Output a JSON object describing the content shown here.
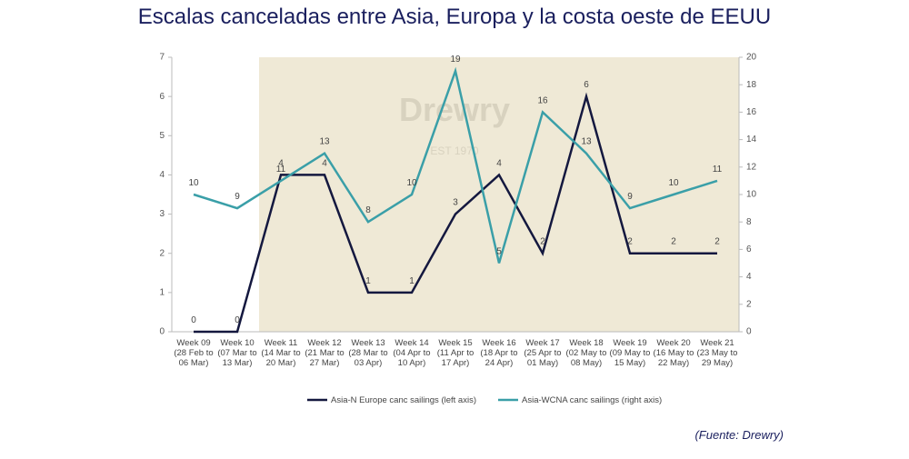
{
  "chart_data": {
    "type": "line",
    "title": "Escalas canceladas entre Asia, Europa y la costa oeste de EEUU",
    "watermark": [
      "Drewry",
      "EST 1970"
    ],
    "source": "(Fuente: Drewry)",
    "categories": [
      [
        "Week 09",
        "(28 Feb to",
        "06 Mar)"
      ],
      [
        "Week 10",
        "(07 Mar to",
        "13 Mar)"
      ],
      [
        "Week 11",
        "(14 Mar to",
        "20 Mar)"
      ],
      [
        "Week 12",
        "(21 Mar to",
        "27 Mar)"
      ],
      [
        "Week 13",
        "(28 Mar to",
        "03 Apr)"
      ],
      [
        "Week 14",
        "(04 Apr to",
        "10 Apr)"
      ],
      [
        "Week 15",
        "(11 Apr to",
        "17 Apr)"
      ],
      [
        "Week 16",
        "(18 Apr to",
        "24 Apr)"
      ],
      [
        "Week 17",
        "(25 Apr to",
        "01 May)"
      ],
      [
        "Week 18",
        "(02 May to",
        "08 May)"
      ],
      [
        "Week 19",
        "(09 May to",
        "15 May)"
      ],
      [
        "Week 20",
        "(16 May to",
        "22 May)"
      ],
      [
        "Week 21",
        "(23 May to",
        "29 May)"
      ]
    ],
    "series": [
      {
        "name": "Asia-N Europe canc sailings (left axis)",
        "color": "#14183f",
        "axis": "y",
        "values": [
          0,
          0,
          4,
          4,
          1,
          1,
          3,
          4,
          2,
          6,
          2,
          2,
          2
        ]
      },
      {
        "name": "Asia-WCNA canc sailings (right axis)",
        "color": "#3a9fa8",
        "axis": "y2",
        "values": [
          10,
          9,
          11,
          13,
          8,
          10,
          19,
          5,
          16,
          13,
          9,
          10,
          11
        ]
      }
    ],
    "ylim": [
      0,
      7
    ],
    "yticks": [
      0,
      1,
      2,
      3,
      4,
      5,
      6,
      7
    ],
    "y2lim": [
      0,
      20
    ],
    "y2ticks": [
      0,
      2,
      4,
      6,
      8,
      10,
      12,
      14,
      16,
      18,
      20
    ],
    "legend": "bottom"
  }
}
